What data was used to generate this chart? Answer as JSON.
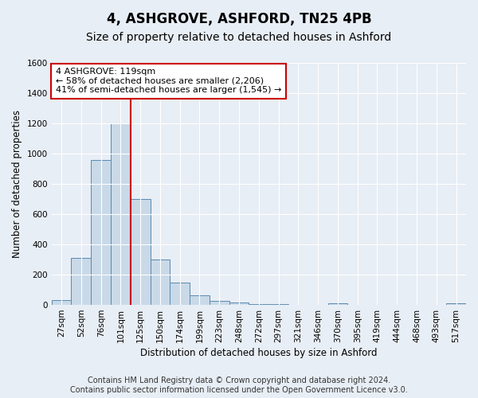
{
  "title": "4, ASHGROVE, ASHFORD, TN25 4PB",
  "subtitle": "Size of property relative to detached houses in Ashford",
  "xlabel": "Distribution of detached houses by size in Ashford",
  "ylabel": "Number of detached properties",
  "bar_labels": [
    "27sqm",
    "52sqm",
    "76sqm",
    "101sqm",
    "125sqm",
    "150sqm",
    "174sqm",
    "199sqm",
    "223sqm",
    "248sqm",
    "272sqm",
    "297sqm",
    "321sqm",
    "346sqm",
    "370sqm",
    "395sqm",
    "419sqm",
    "444sqm",
    "468sqm",
    "493sqm",
    "517sqm"
  ],
  "bar_values": [
    30,
    310,
    960,
    1200,
    700,
    300,
    150,
    65,
    25,
    15,
    5,
    5,
    0,
    0,
    10,
    0,
    0,
    0,
    0,
    0,
    10
  ],
  "bar_color": "#c9d9e8",
  "bar_edgecolor": "#5a8ab0",
  "vline_color": "#cc0000",
  "annotation_text": "4 ASHGROVE: 119sqm\n← 58% of detached houses are smaller (2,206)\n41% of semi-detached houses are larger (1,545) →",
  "annotation_box_color": "#ffffff",
  "annotation_box_edgecolor": "#cc0000",
  "ylim": [
    0,
    1600
  ],
  "yticks": [
    0,
    200,
    400,
    600,
    800,
    1000,
    1200,
    1400,
    1600
  ],
  "footer_line1": "Contains HM Land Registry data © Crown copyright and database right 2024.",
  "footer_line2": "Contains public sector information licensed under the Open Government Licence v3.0.",
  "background_color": "#e8eef5",
  "plot_bg_color": "#e8eef5",
  "title_fontsize": 12,
  "subtitle_fontsize": 10,
  "axis_label_fontsize": 8.5,
  "tick_fontsize": 7.5,
  "annotation_fontsize": 8,
  "footer_fontsize": 7
}
